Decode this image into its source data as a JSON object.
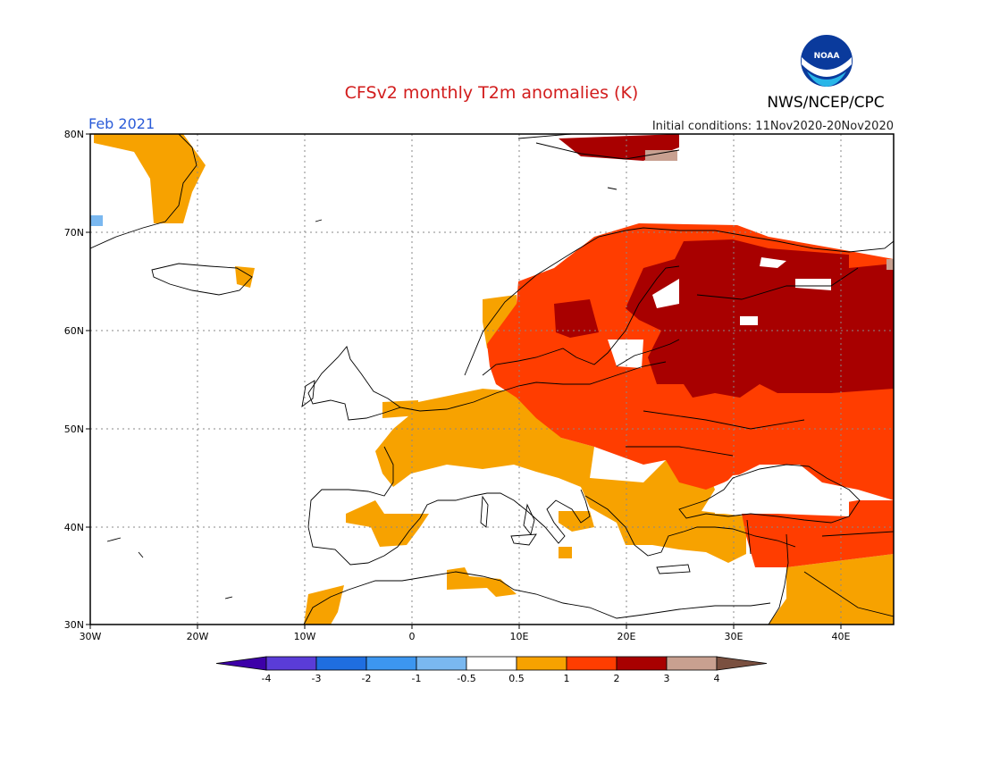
{
  "header": {
    "title": "CFSv2 monthly T2m anomalies (K)",
    "valid_month": "Feb 2021",
    "initial_conditions": "Initial conditions: 11Nov2020-20Nov2020",
    "agency": "NWS/NCEP/CPC",
    "logo_text": "NOAA"
  },
  "colors": {
    "title": "#d21c1c",
    "month": "#2a5bd8",
    "anom_05_1": "#f7a200",
    "anom_1_2": "#ff3d00",
    "anom_2_3": "#a80000",
    "anom_3_4": "#c8a090",
    "anom_neg_05": "#7ab8f0",
    "grid": "#888888",
    "coast": "#000000"
  },
  "map": {
    "lon_labels": [
      "30W",
      "20W",
      "10W",
      "0",
      "10E",
      "20E",
      "30E",
      "40E"
    ],
    "lat_labels": [
      "80N",
      "70N",
      "60N",
      "50N",
      "40N",
      "30N"
    ]
  },
  "colorbar": {
    "colors": [
      "#3d00a8",
      "#5a3cd8",
      "#1f6ee0",
      "#3c96f0",
      "#7ab8f0",
      "#ffffff",
      "#f7a200",
      "#ff3d00",
      "#a80000",
      "#c8a090",
      "#7a5040"
    ],
    "labels": [
      "-4",
      "-3",
      "-2",
      "-1",
      "-0.5",
      "0.5",
      "1",
      "2",
      "3",
      "4"
    ]
  }
}
